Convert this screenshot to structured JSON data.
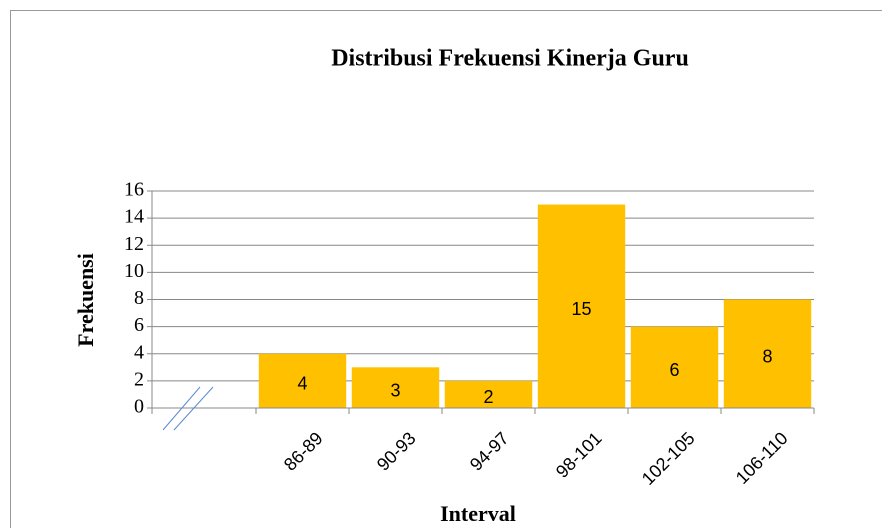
{
  "chart_data": {
    "type": "bar",
    "title": "Distribusi Frekuensi Kinerja Guru",
    "x_label": "Interval",
    "y_label": "Frekuensi",
    "categories": [
      null,
      "86-89",
      "90-93",
      "94-97",
      "98-101",
      "102-105",
      "106-110"
    ],
    "values": [
      null,
      4,
      3,
      2,
      15,
      6,
      8
    ],
    "color": "#ffc000",
    "ylim": [
      0,
      16
    ],
    "yticks": [
      0,
      2,
      4,
      6,
      8,
      10,
      12,
      14,
      16
    ],
    "grid": true
  }
}
